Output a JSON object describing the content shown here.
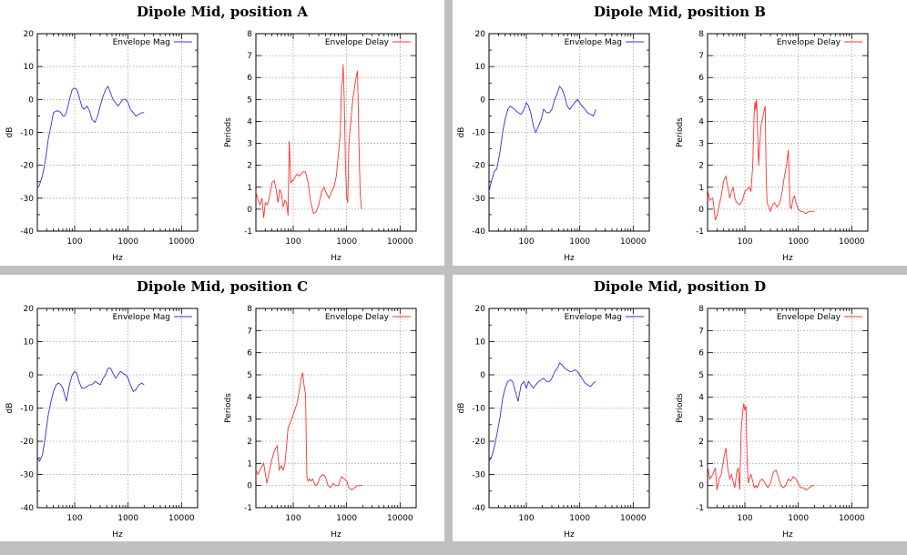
{
  "panels": [
    {
      "title": "Dipole Mid, position A"
    },
    {
      "title": "Dipole Mid, position B"
    },
    {
      "title": "Dipole Mid, position C"
    },
    {
      "title": "Dipole Mid, position D"
    }
  ],
  "colors": {
    "mag": "#3030e0",
    "delay": "#ff3030"
  },
  "chart_data": [
    {
      "panel": 0,
      "type": "line",
      "xscale": "log",
      "xlim": [
        20,
        20000
      ],
      "ylim": [
        -40,
        20
      ],
      "xticks": [
        100,
        1000,
        10000
      ],
      "xtick_labels": [
        "100",
        "1000",
        "10000"
      ],
      "yticks": [
        -40,
        -30,
        -20,
        -10,
        0,
        10,
        20
      ],
      "ytick_labels": [
        "-40",
        "-30",
        "-20",
        "-10",
        "0",
        "10",
        "20"
      ],
      "xlabel": "Hz",
      "ylabel": "dB",
      "series": [
        {
          "name": "Envelope Mag",
          "x": [
            20,
            22,
            25,
            28,
            32,
            36,
            40,
            45,
            50,
            55,
            60,
            65,
            70,
            80,
            90,
            100,
            110,
            120,
            135,
            150,
            170,
            190,
            210,
            240,
            270,
            300,
            340,
            380,
            420,
            470,
            520,
            580,
            650,
            720,
            800,
            900,
            1000,
            1100,
            1250,
            1400,
            1600,
            1800,
            2000
          ],
          "y": [
            -27,
            -26,
            -23,
            -19,
            -12,
            -8,
            -4,
            -3.5,
            -3.5,
            -4,
            -5,
            -5,
            -4,
            0,
            3,
            3.5,
            3,
            1,
            -2,
            -3,
            -2,
            -3.5,
            -6,
            -7,
            -5,
            -2,
            1,
            3,
            4,
            2,
            0,
            -1,
            -2,
            -1,
            0,
            0,
            -1,
            -3,
            -4,
            -5,
            -4.5,
            -4,
            -4
          ]
        }
      ]
    },
    {
      "panel": 0,
      "type": "line",
      "xscale": "log",
      "xlim": [
        20,
        20000
      ],
      "ylim": [
        -1,
        8
      ],
      "xticks": [
        100,
        1000,
        10000
      ],
      "xtick_labels": [
        "100",
        "1000",
        "10000"
      ],
      "yticks": [
        -1,
        0,
        1,
        2,
        3,
        4,
        5,
        6,
        7,
        8
      ],
      "ytick_labels": [
        "-1",
        "0",
        "1",
        "2",
        "3",
        "4",
        "5",
        "6",
        "7",
        "8"
      ],
      "xlabel": "Hz",
      "ylabel": "Periods",
      "series": [
        {
          "name": "Envelope Delay",
          "x": [
            20,
            22,
            24,
            26,
            28,
            30,
            33,
            36,
            40,
            44,
            48,
            52,
            56,
            60,
            65,
            70,
            75,
            80,
            84,
            87,
            90,
            95,
            100,
            110,
            120,
            130,
            150,
            170,
            190,
            210,
            240,
            270,
            300,
            340,
            380,
            420,
            470,
            520,
            580,
            640,
            700,
            760,
            800,
            830,
            860,
            900,
            950,
            1000,
            1050,
            1100,
            1200,
            1300,
            1400,
            1500,
            1600,
            1700,
            1800,
            1900
          ],
          "y": [
            0.8,
            0.4,
            0.2,
            0.5,
            -0.4,
            0.3,
            0.2,
            0.6,
            1.2,
            1.3,
            0.9,
            0.3,
            0.9,
            0.7,
            0.1,
            0.4,
            0.3,
            -0.3,
            3.1,
            2.2,
            1.2,
            1.3,
            1.3,
            1.5,
            1.6,
            1.5,
            1.7,
            1.7,
            1.2,
            0.4,
            -0.2,
            -0.1,
            0.2,
            0.8,
            1,
            0.7,
            0.5,
            0.8,
            1,
            1.5,
            2.5,
            3.5,
            5.7,
            5.8,
            6.6,
            5,
            2,
            0.5,
            0.3,
            3,
            4,
            5,
            5.5,
            6,
            6.3,
            3,
            0.6,
            0
          ]
        }
      ]
    },
    {
      "panel": 1,
      "type": "line",
      "xscale": "log",
      "xlim": [
        20,
        20000
      ],
      "ylim": [
        -40,
        20
      ],
      "xticks": [
        100,
        1000,
        10000
      ],
      "xtick_labels": [
        "100",
        "1000",
        "10000"
      ],
      "yticks": [
        -40,
        -30,
        -20,
        -10,
        0,
        10,
        20
      ],
      "ytick_labels": [
        "-40",
        "-30",
        "-20",
        "-10",
        "0",
        "10",
        "20"
      ],
      "xlabel": "Hz",
      "ylabel": "dB",
      "series": [
        {
          "name": "Envelope Mag",
          "x": [
            20,
            22,
            25,
            28,
            32,
            36,
            40,
            45,
            50,
            55,
            60,
            65,
            70,
            80,
            90,
            100,
            110,
            120,
            135,
            150,
            170,
            190,
            210,
            240,
            270,
            300,
            340,
            380,
            420,
            470,
            520,
            580,
            650,
            720,
            800,
            900,
            1000,
            1100,
            1250,
            1400,
            1600,
            1800,
            2000
          ],
          "y": [
            -28,
            -25,
            -22,
            -21,
            -16,
            -10,
            -6,
            -3,
            -2,
            -2.5,
            -3,
            -3.5,
            -4,
            -4.5,
            -3,
            -1,
            -2,
            -4,
            -8,
            -10,
            -8,
            -6,
            -3,
            -4,
            -4,
            -3,
            0,
            2,
            4,
            3,
            1,
            -2,
            -3,
            -2,
            -1,
            0,
            -1,
            -2,
            -3,
            -4,
            -4.5,
            -5,
            -3
          ]
        }
      ]
    },
    {
      "panel": 1,
      "type": "line",
      "xscale": "log",
      "xlim": [
        20,
        20000
      ],
      "ylim": [
        -1,
        8
      ],
      "xticks": [
        100,
        1000,
        10000
      ],
      "xtick_labels": [
        "100",
        "1000",
        "10000"
      ],
      "yticks": [
        -1,
        0,
        1,
        2,
        3,
        4,
        5,
        6,
        7,
        8
      ],
      "ytick_labels": [
        "-1",
        "0",
        "1",
        "2",
        "3",
        "4",
        "5",
        "6",
        "7",
        "8"
      ],
      "xlabel": "Hz",
      "ylabel": "Periods",
      "series": [
        {
          "name": "Envelope Delay",
          "x": [
            20,
            22,
            25,
            28,
            30,
            33,
            36,
            40,
            44,
            48,
            52,
            56,
            60,
            65,
            70,
            80,
            90,
            100,
            110,
            120,
            130,
            140,
            150,
            155,
            160,
            165,
            170,
            180,
            190,
            200,
            220,
            240,
            250,
            260,
            280,
            300,
            330,
            360,
            400,
            450,
            500,
            550,
            600,
            650,
            700,
            720,
            740,
            760,
            800,
            850,
            900,
            1000,
            1100,
            1200,
            1400,
            1600,
            1800,
            2000
          ],
          "y": [
            0.9,
            0.4,
            0.5,
            -0.5,
            -0.3,
            0.2,
            0.6,
            1.3,
            1.5,
            1,
            0.5,
            0.8,
            1,
            0.5,
            0.3,
            0.2,
            0.4,
            0.8,
            0.9,
            1,
            0.8,
            2,
            4.5,
            4.9,
            4.5,
            5,
            4.2,
            2,
            3,
            3.8,
            4.3,
            4.7,
            1.5,
            0.3,
            0.1,
            -0.1,
            0.2,
            0.3,
            0.1,
            0.3,
            0.8,
            1.5,
            2,
            2.7,
            0.1,
            0.1,
            0,
            0.2,
            0.5,
            0.6,
            0.3,
            0,
            -0.1,
            -0.1,
            -0.2,
            -0.1,
            -0.1,
            -0.1
          ]
        }
      ]
    },
    {
      "panel": 2,
      "type": "line",
      "xscale": "log",
      "xlim": [
        20,
        20000
      ],
      "ylim": [
        -40,
        20
      ],
      "xticks": [
        100,
        1000,
        10000
      ],
      "xtick_labels": [
        "100",
        "1000",
        "10000"
      ],
      "yticks": [
        -40,
        -30,
        -20,
        -10,
        0,
        10,
        20
      ],
      "ytick_labels": [
        "-40",
        "-30",
        "-20",
        "-10",
        "0",
        "10",
        "20"
      ],
      "xlabel": "Hz",
      "ylabel": "dB",
      "series": [
        {
          "name": "Envelope Mag",
          "x": [
            20,
            22,
            25,
            28,
            32,
            36,
            40,
            45,
            50,
            55,
            60,
            65,
            70,
            80,
            90,
            100,
            110,
            120,
            135,
            150,
            170,
            190,
            210,
            240,
            270,
            300,
            340,
            380,
            420,
            470,
            520,
            580,
            650,
            720,
            800,
            900,
            1000,
            1100,
            1250,
            1400,
            1600,
            1800,
            2000
          ],
          "y": [
            -25,
            -26,
            -24,
            -19,
            -12,
            -8,
            -5,
            -3,
            -2.5,
            -3,
            -4,
            -6,
            -8,
            -3,
            0,
            1,
            0.5,
            -2,
            -4,
            -4,
            -3.5,
            -3,
            -3,
            -2,
            -2.5,
            -3,
            -1,
            0,
            2,
            2,
            0.5,
            -1,
            0,
            1,
            0.5,
            0,
            -1,
            -3,
            -5,
            -4.5,
            -3,
            -2.5,
            -3
          ]
        }
      ]
    },
    {
      "panel": 2,
      "type": "line",
      "xscale": "log",
      "xlim": [
        20,
        20000
      ],
      "ylim": [
        -1,
        8
      ],
      "xticks": [
        100,
        1000,
        10000
      ],
      "xtick_labels": [
        "100",
        "1000",
        "10000"
      ],
      "yticks": [
        -1,
        0,
        1,
        2,
        3,
        4,
        5,
        6,
        7,
        8
      ],
      "ytick_labels": [
        "-1",
        "0",
        "1",
        "2",
        "3",
        "4",
        "5",
        "6",
        "7",
        "8"
      ],
      "xlabel": "Hz",
      "ylabel": "Periods",
      "series": [
        {
          "name": "Envelope Delay",
          "x": [
            20,
            22,
            25,
            28,
            32,
            36,
            40,
            45,
            50,
            55,
            60,
            65,
            70,
            75,
            80,
            90,
            100,
            110,
            120,
            130,
            140,
            150,
            160,
            170,
            180,
            190,
            200,
            215,
            230,
            260,
            290,
            320,
            360,
            400,
            450,
            500,
            560,
            620,
            700,
            800,
            900,
            1000,
            1100,
            1250,
            1400,
            1600,
            1800,
            2000
          ],
          "y": [
            0.7,
            0.5,
            0.8,
            1,
            0.1,
            0.7,
            1.2,
            1.6,
            1.8,
            0.7,
            0.9,
            0.7,
            1,
            1.8,
            2.6,
            2.9,
            3.2,
            3.5,
            3.8,
            4.3,
            4.8,
            5.1,
            4.5,
            4.1,
            0.4,
            0.2,
            0.3,
            0.2,
            0.3,
            0,
            0.1,
            0.4,
            0.5,
            0.4,
            0,
            -0.1,
            0.1,
            0,
            0,
            0.4,
            0.3,
            0.2,
            -0.1,
            -0.2,
            -0.1,
            0,
            0,
            0
          ]
        }
      ]
    },
    {
      "panel": 3,
      "type": "line",
      "xscale": "log",
      "xlim": [
        20,
        20000
      ],
      "ylim": [
        -40,
        20
      ],
      "xticks": [
        100,
        1000,
        10000
      ],
      "xtick_labels": [
        "100",
        "1000",
        "10000"
      ],
      "yticks": [
        -40,
        -30,
        -20,
        -10,
        0,
        10,
        20
      ],
      "ytick_labels": [
        "-40",
        "-30",
        "-20",
        "-10",
        "0",
        "10",
        "20"
      ],
      "xlabel": "Hz",
      "ylabel": "dB",
      "series": [
        {
          "name": "Envelope Mag",
          "x": [
            20,
            22,
            25,
            28,
            32,
            36,
            40,
            45,
            50,
            55,
            60,
            65,
            70,
            80,
            90,
            100,
            110,
            120,
            135,
            150,
            170,
            190,
            210,
            240,
            270,
            300,
            340,
            380,
            420,
            470,
            520,
            580,
            650,
            720,
            800,
            900,
            1000,
            1100,
            1250,
            1400,
            1600,
            1800,
            2000
          ],
          "y": [
            -26,
            -25,
            -22,
            -18,
            -13,
            -7,
            -4,
            -2,
            -1.5,
            -2,
            -4,
            -6,
            -8,
            -3,
            -2,
            -4,
            -2,
            -3,
            -4,
            -3,
            -2,
            -1.5,
            -1,
            -2,
            -2,
            -1,
            1,
            2,
            3.5,
            3,
            2,
            1.5,
            1,
            1,
            1.5,
            1,
            0,
            -1,
            -2.5,
            -3,
            -3.5,
            -2.5,
            -2
          ]
        }
      ]
    },
    {
      "panel": 3,
      "type": "line",
      "xscale": "log",
      "xlim": [
        20,
        20000
      ],
      "ylim": [
        -1,
        8
      ],
      "xticks": [
        100,
        1000,
        10000
      ],
      "xtick_labels": [
        "100",
        "1000",
        "10000"
      ],
      "yticks": [
        -1,
        0,
        1,
        2,
        3,
        4,
        5,
        6,
        7,
        8
      ],
      "ytick_labels": [
        "-1",
        "0",
        "1",
        "2",
        "3",
        "4",
        "5",
        "6",
        "7",
        "8"
      ],
      "xlabel": "Hz",
      "ylabel": "Periods",
      "series": [
        {
          "name": "Envelope Delay",
          "x": [
            20,
            22,
            25,
            28,
            30,
            33,
            36,
            40,
            44,
            48,
            52,
            56,
            60,
            65,
            70,
            75,
            80,
            85,
            90,
            95,
            100,
            105,
            110,
            115,
            120,
            130,
            140,
            150,
            160,
            170,
            190,
            210,
            240,
            270,
            300,
            340,
            380,
            420,
            470,
            520,
            580,
            650,
            720,
            800,
            900,
            1000,
            1100,
            1250,
            1400,
            1600,
            1800,
            2000
          ],
          "y": [
            0.9,
            0.3,
            0.5,
            0.8,
            -0.2,
            0.3,
            0.5,
            1.2,
            1.7,
            0.7,
            0.3,
            0.5,
            0.2,
            -0.1,
            0.6,
            0.8,
            -0.2,
            2.5,
            3.2,
            3.7,
            3.4,
            3.6,
            1.2,
            0.1,
            0.3,
            0.5,
            0.2,
            -0.1,
            0,
            -0.1,
            0.2,
            0.3,
            0.1,
            -0.1,
            0.1,
            0.6,
            0.7,
            0.4,
            0,
            -0.1,
            0,
            0.3,
            0.2,
            0.4,
            0.3,
            0.1,
            -0.1,
            -0.1,
            -0.2,
            -0.1,
            0,
            0
          ]
        }
      ]
    }
  ]
}
